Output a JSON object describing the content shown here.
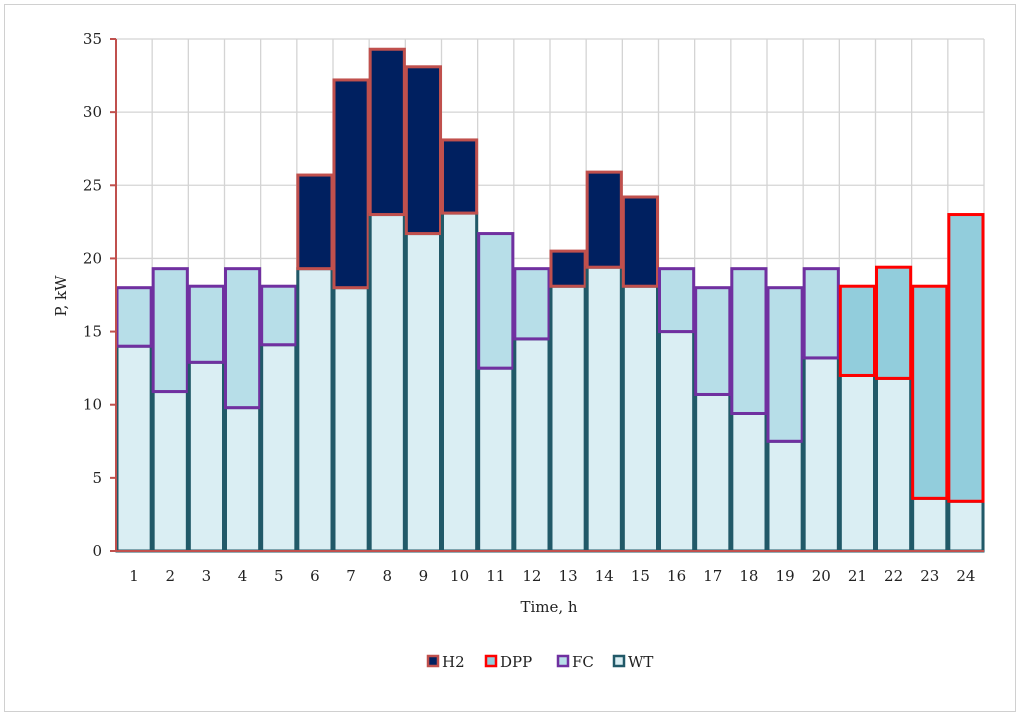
{
  "chart_data": {
    "type": "bar",
    "stacked": true,
    "xlabel": "Time, h",
    "ylabel": "P, kW",
    "ylim": [
      0,
      35
    ],
    "yticks": [
      0,
      5,
      10,
      15,
      20,
      25,
      30,
      35
    ],
    "grid": true,
    "legend_position": "bottom",
    "categories": [
      "1",
      "2",
      "3",
      "4",
      "5",
      "6",
      "7",
      "8",
      "9",
      "10",
      "11",
      "12",
      "13",
      "14",
      "15",
      "16",
      "17",
      "18",
      "19",
      "20",
      "21",
      "22",
      "23",
      "24"
    ],
    "series": [
      {
        "name": "WT",
        "fill": "#DAEEF3",
        "outline": "#215968",
        "values": [
          14.0,
          10.9,
          12.9,
          9.8,
          14.1,
          19.3,
          18.0,
          23.0,
          21.7,
          23.1,
          12.5,
          14.5,
          18.1,
          19.4,
          18.1,
          15.0,
          10.7,
          9.4,
          7.5,
          13.2,
          12.0,
          11.8,
          3.6,
          3.4
        ]
      },
      {
        "name": "FC",
        "fill": "#B7DEE8",
        "outline": "#7030A0",
        "values": [
          4.0,
          8.4,
          5.2,
          9.5,
          4.0,
          0.0,
          0.0,
          0.0,
          0.0,
          0.0,
          9.2,
          4.8,
          0.0,
          0.0,
          0.0,
          4.3,
          7.3,
          9.9,
          10.5,
          6.1,
          0.0,
          0.0,
          0.0,
          0.0
        ]
      },
      {
        "name": "DPP",
        "fill": "#92CDDC",
        "outline": "#FF0000",
        "values": [
          0,
          0,
          0,
          0,
          0,
          0,
          0,
          0,
          0,
          0,
          0,
          0,
          0,
          0,
          0,
          0,
          0,
          0,
          0,
          0,
          6.1,
          7.6,
          14.5,
          19.6
        ]
      },
      {
        "name": "H2",
        "fill": "#002060",
        "outline": "#C0504D",
        "values": [
          0,
          0,
          0,
          0,
          0,
          6.4,
          14.2,
          11.3,
          11.4,
          5.0,
          0,
          0,
          2.4,
          6.5,
          6.1,
          0,
          0,
          0,
          0,
          0,
          0,
          0,
          0,
          0
        ]
      }
    ],
    "legend": [
      "H2",
      "DPP",
      "FC",
      "WT"
    ]
  }
}
